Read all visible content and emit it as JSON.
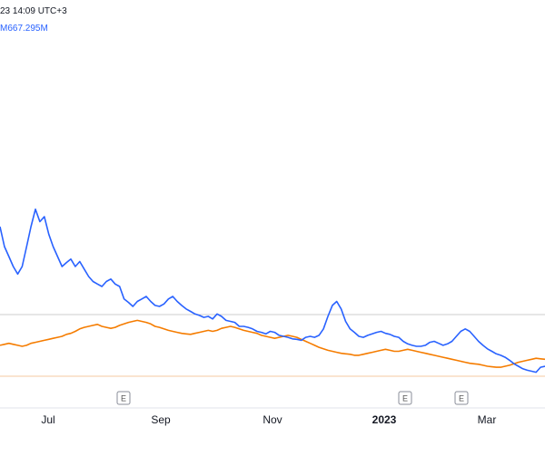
{
  "header": {
    "timestamp": "23 14:09 UTC+3",
    "volume_readout": "M667.295M"
  },
  "colors": {
    "series_main": "#2962ff",
    "series_avg": "#f57c00",
    "ref_line": "#cccccc",
    "bottom_line": "#f5c9a0"
  },
  "chart_data": {
    "type": "line",
    "x_axis": {
      "ticks": [
        "Jul",
        "Sep",
        "Nov",
        "2023",
        "Mar"
      ],
      "emphasis": [
        "2023"
      ]
    },
    "events": [
      {
        "label": "E"
      },
      {
        "label": "E"
      },
      {
        "label": "E"
      }
    ],
    "series": [
      {
        "values": [
          3.0,
          2.6,
          2.4,
          2.2,
          2.05,
          2.2,
          2.6,
          3.0,
          3.35,
          3.1,
          3.2,
          2.85,
          2.6,
          2.4,
          2.2,
          2.28,
          2.35,
          2.2,
          2.3,
          2.15,
          2.0,
          1.9,
          1.85,
          1.8,
          1.9,
          1.95,
          1.85,
          1.8,
          1.55,
          1.48,
          1.4,
          1.5,
          1.55,
          1.6,
          1.5,
          1.42,
          1.4,
          1.45,
          1.55,
          1.6,
          1.5,
          1.42,
          1.35,
          1.3,
          1.25,
          1.22,
          1.18,
          1.2,
          1.15,
          1.25,
          1.2,
          1.12,
          1.1,
          1.08,
          1.0,
          1.0,
          0.98,
          0.95,
          0.9,
          0.88,
          0.85,
          0.9,
          0.88,
          0.82,
          0.8,
          0.78,
          0.75,
          0.74,
          0.72,
          0.78,
          0.8,
          0.78,
          0.82,
          0.95,
          1.2,
          1.42,
          1.5,
          1.35,
          1.1,
          0.95,
          0.88,
          0.8,
          0.78,
          0.82,
          0.85,
          0.88,
          0.9,
          0.86,
          0.84,
          0.8,
          0.78,
          0.7,
          0.65,
          0.62,
          0.6,
          0.6,
          0.62,
          0.68,
          0.7,
          0.66,
          0.62,
          0.65,
          0.7,
          0.8,
          0.9,
          0.95,
          0.9,
          0.8,
          0.7,
          0.62,
          0.55,
          0.5,
          0.45,
          0.42,
          0.38,
          0.32,
          0.25,
          0.2,
          0.15,
          0.12,
          0.1,
          0.08,
          0.18,
          0.2
        ],
        "color": "#2962ff"
      },
      {
        "values": [
          0.62,
          0.64,
          0.66,
          0.64,
          0.62,
          0.6,
          0.62,
          0.66,
          0.68,
          0.7,
          0.72,
          0.74,
          0.76,
          0.78,
          0.8,
          0.84,
          0.86,
          0.9,
          0.95,
          0.98,
          1.0,
          1.02,
          1.04,
          1.0,
          0.98,
          0.96,
          0.98,
          1.02,
          1.05,
          1.08,
          1.1,
          1.12,
          1.1,
          1.08,
          1.05,
          1.0,
          0.98,
          0.95,
          0.92,
          0.9,
          0.88,
          0.86,
          0.85,
          0.84,
          0.86,
          0.88,
          0.9,
          0.92,
          0.9,
          0.92,
          0.96,
          0.98,
          1.0,
          0.98,
          0.95,
          0.92,
          0.9,
          0.88,
          0.86,
          0.82,
          0.8,
          0.78,
          0.76,
          0.78,
          0.8,
          0.82,
          0.8,
          0.78,
          0.74,
          0.7,
          0.66,
          0.62,
          0.58,
          0.55,
          0.52,
          0.5,
          0.48,
          0.46,
          0.45,
          0.44,
          0.42,
          0.42,
          0.44,
          0.46,
          0.48,
          0.5,
          0.52,
          0.54,
          0.52,
          0.5,
          0.5,
          0.52,
          0.54,
          0.52,
          0.5,
          0.48,
          0.46,
          0.44,
          0.42,
          0.4,
          0.38,
          0.36,
          0.34,
          0.32,
          0.3,
          0.28,
          0.26,
          0.25,
          0.24,
          0.22,
          0.2,
          0.19,
          0.18,
          0.18,
          0.2,
          0.22,
          0.25,
          0.28,
          0.3,
          0.32,
          0.34,
          0.36,
          0.35,
          0.34
        ],
        "color": "#f57c00"
      }
    ]
  }
}
